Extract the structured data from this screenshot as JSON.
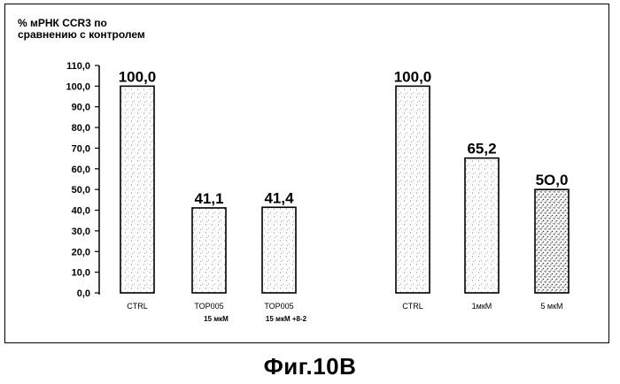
{
  "caption": "Фиг.10В",
  "chart_data": {
    "type": "bar",
    "ylabel_lines": [
      "% мРНК CCR3 по",
      "сравнению с контролем"
    ],
    "ylim": [
      0,
      110
    ],
    "yticks": [
      "0,0",
      "10,0",
      "20,0",
      "30,0",
      "40,0",
      "50,0",
      "60,0",
      "70,0",
      "80,0",
      "90,0",
      "100,0",
      "110,0"
    ],
    "bars": [
      {
        "label": [
          "CTRL"
        ],
        "value": 100.0,
        "value_label": "100,0",
        "slot": 0
      },
      {
        "label": [
          "TOP005",
          "15 мкМ"
        ],
        "value": 41.1,
        "value_label": "41,1",
        "slot": 1
      },
      {
        "label": [
          "TOP005",
          "15 мкМ +8-2"
        ],
        "value": 41.4,
        "value_label": "41,4",
        "slot": 2
      },
      {
        "label": [
          "CTRL"
        ],
        "value": 100.0,
        "value_label": "100,0",
        "slot": 4
      },
      {
        "label": [
          "1мкМ"
        ],
        "value": 65.2,
        "value_label": "65,2",
        "slot": 5
      },
      {
        "label": [
          "5 мкМ"
        ],
        "value": 50.0,
        "value_label": "5О,0",
        "slot": 6
      }
    ],
    "grid": false,
    "legend": "none"
  }
}
